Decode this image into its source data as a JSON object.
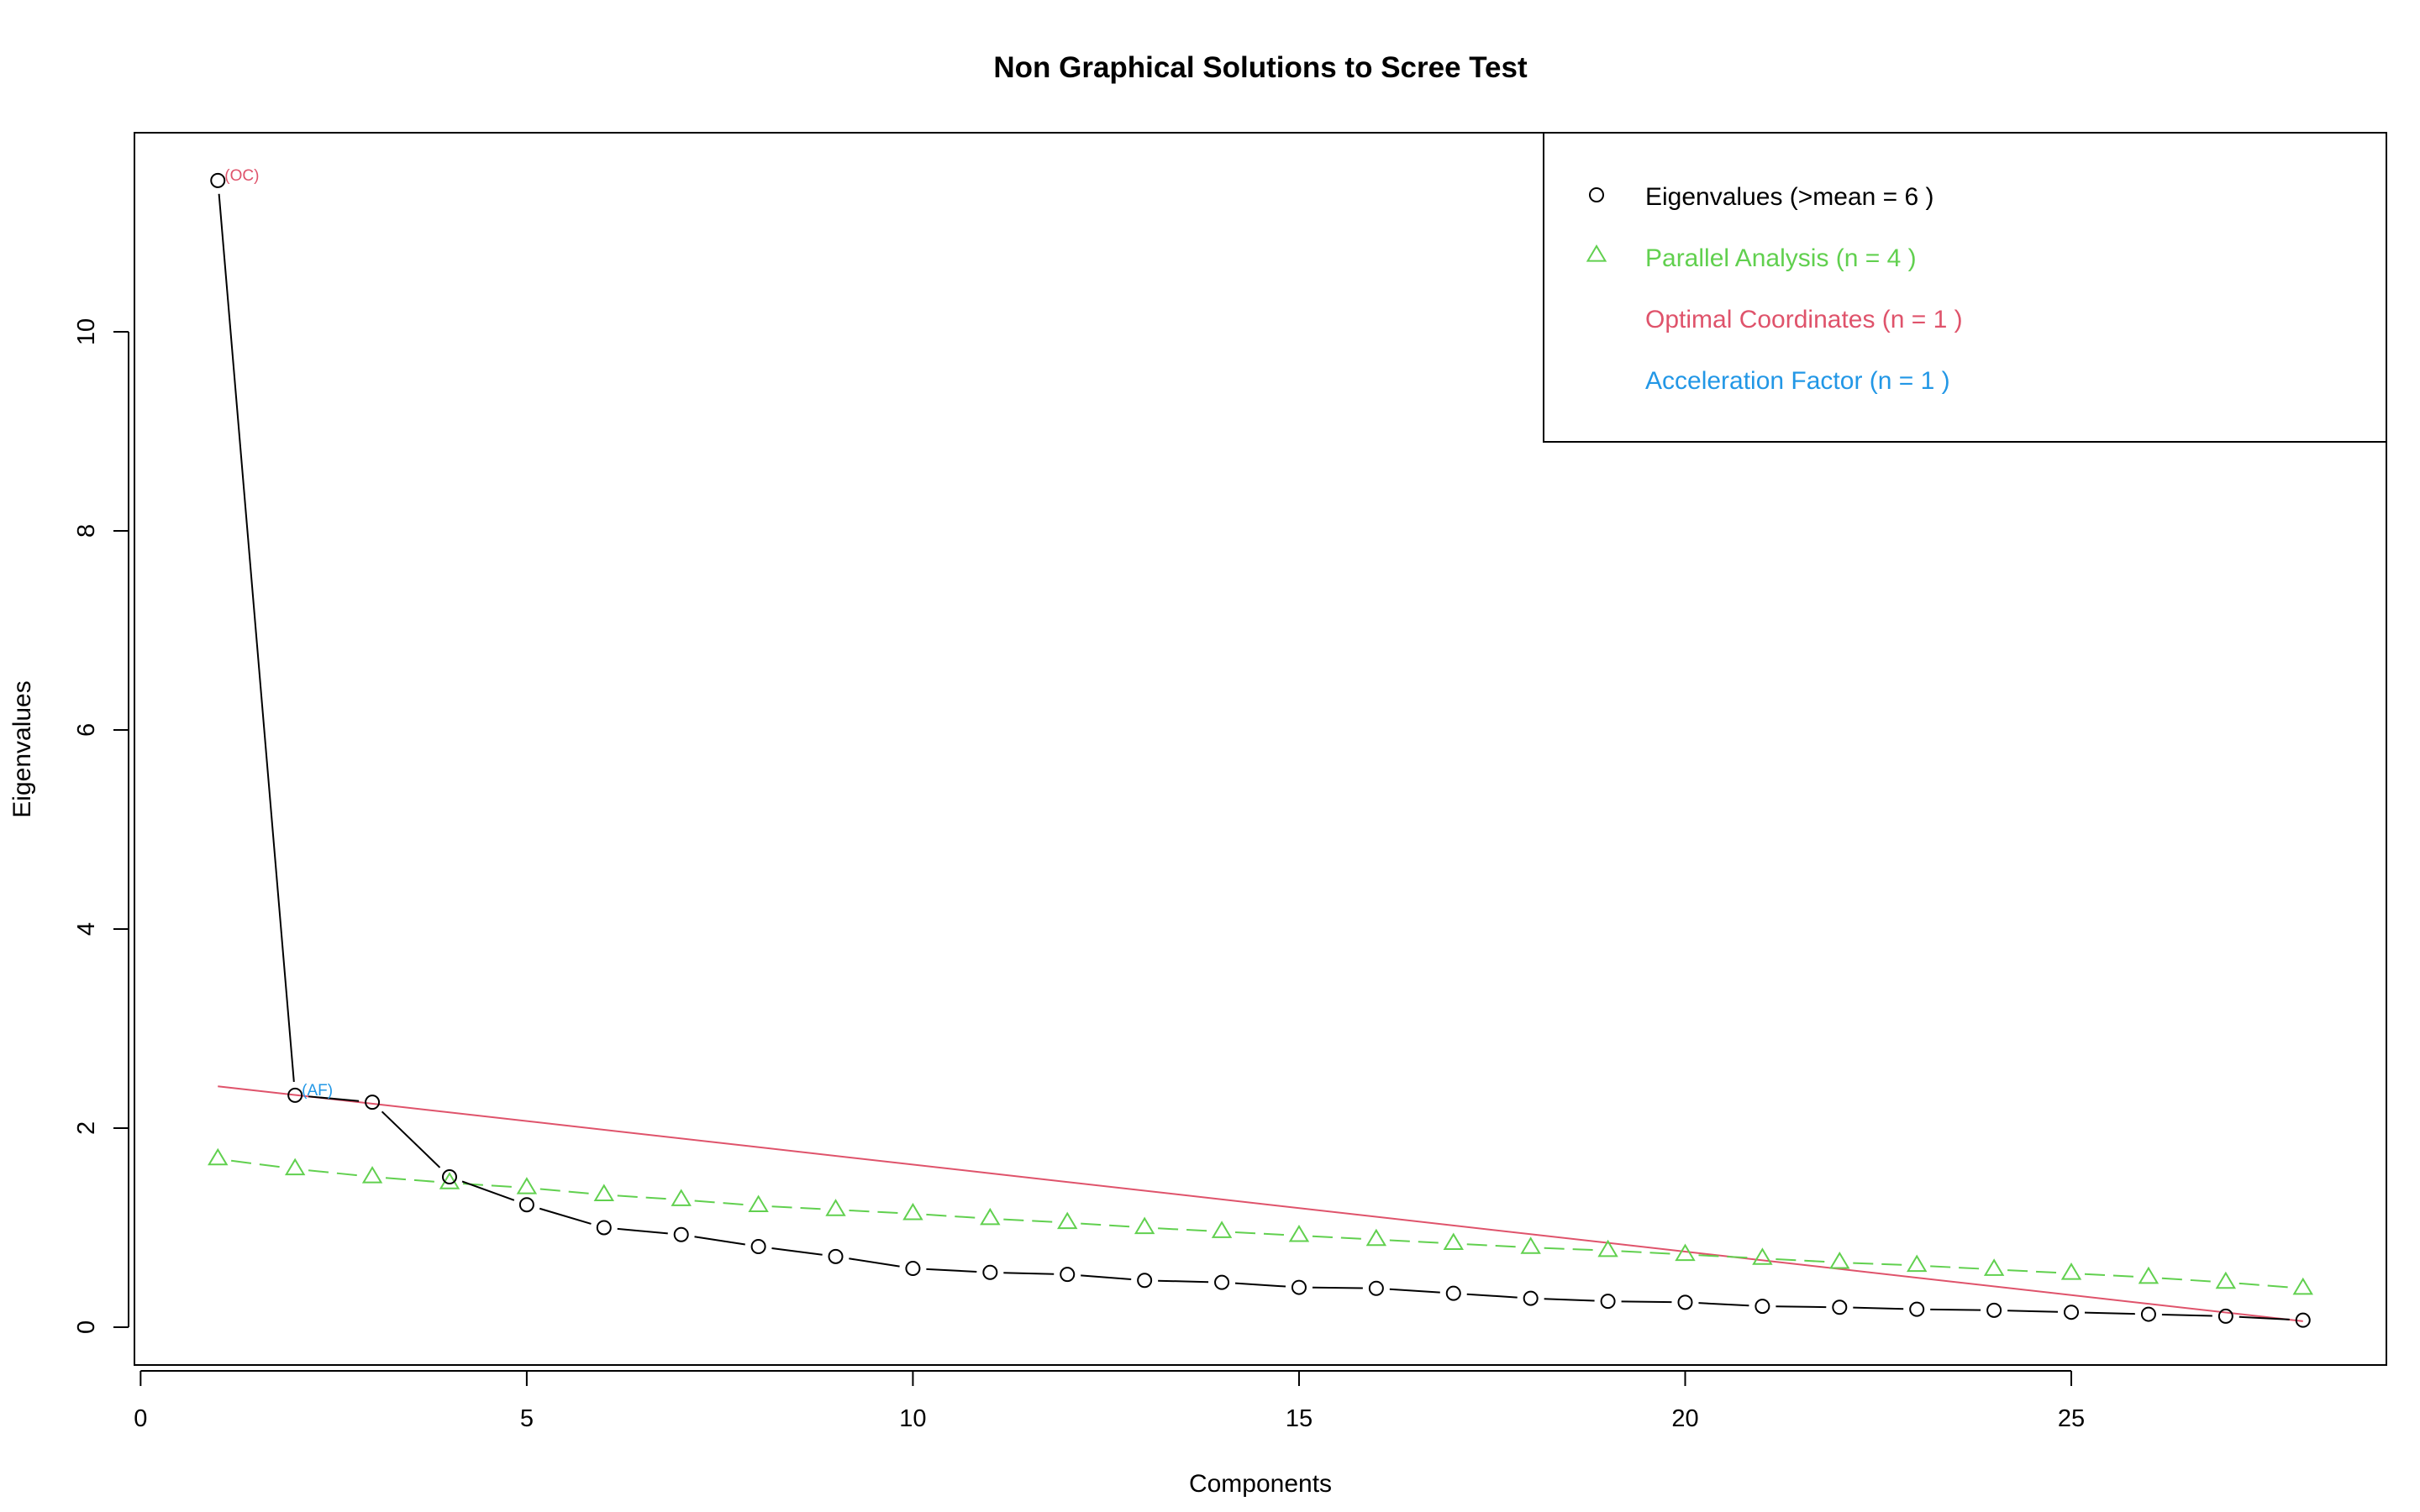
{
  "chart_data": {
    "type": "line",
    "title": "Non Graphical Solutions to Scree Test",
    "xlabel": "Components",
    "ylabel": "Eigenvalues",
    "xlim": [
      -0.08,
      29.08
    ],
    "ylim": [
      -0.38,
      12.0
    ],
    "xticks": [
      0,
      5,
      10,
      15,
      20,
      25
    ],
    "yticks": [
      0,
      2,
      4,
      6,
      8,
      10
    ],
    "grid": false,
    "legend_position": "top-right",
    "x": [
      1,
      2,
      3,
      4,
      5,
      6,
      7,
      8,
      9,
      10,
      11,
      12,
      13,
      14,
      15,
      16,
      17,
      18,
      19,
      20,
      21,
      22,
      23,
      24,
      25,
      26,
      27,
      28
    ],
    "series": [
      {
        "name": "Eigenvalues (>mean  =  6 )",
        "color": "#000000",
        "marker": "circle",
        "line": "solid",
        "values": [
          11.52,
          2.33,
          2.26,
          1.51,
          1.23,
          1.0,
          0.93,
          0.81,
          0.71,
          0.59,
          0.55,
          0.53,
          0.47,
          0.45,
          0.4,
          0.39,
          0.34,
          0.29,
          0.26,
          0.25,
          0.21,
          0.2,
          0.18,
          0.17,
          0.15,
          0.13,
          0.11,
          0.07
        ]
      },
      {
        "name": "Parallel Analysis (n =  4 )",
        "color": "#61D04F",
        "marker": "triangle",
        "line": "dashed",
        "values": [
          1.69,
          1.59,
          1.51,
          1.45,
          1.4,
          1.33,
          1.28,
          1.22,
          1.18,
          1.14,
          1.09,
          1.05,
          1.0,
          0.96,
          0.92,
          0.88,
          0.84,
          0.8,
          0.77,
          0.73,
          0.69,
          0.65,
          0.62,
          0.58,
          0.54,
          0.5,
          0.45,
          0.39
        ]
      },
      {
        "name": "Optimal Coordinates (n =  1 )",
        "color": "#DF536B",
        "marker": "none",
        "line": "solid",
        "segment": [
          [
            1,
            2.42
          ],
          [
            28,
            0.06
          ]
        ]
      },
      {
        "name": "Acceleration Factor (n =  1 )",
        "color": "#2297E6",
        "marker": "none",
        "line": "none"
      }
    ],
    "annotations": [
      {
        "text": "(OC)",
        "x": 1,
        "y": 11.52,
        "color": "#DF536B"
      },
      {
        "text": "(AF)",
        "x": 2,
        "y": 2.33,
        "color": "#2297E6"
      }
    ]
  }
}
